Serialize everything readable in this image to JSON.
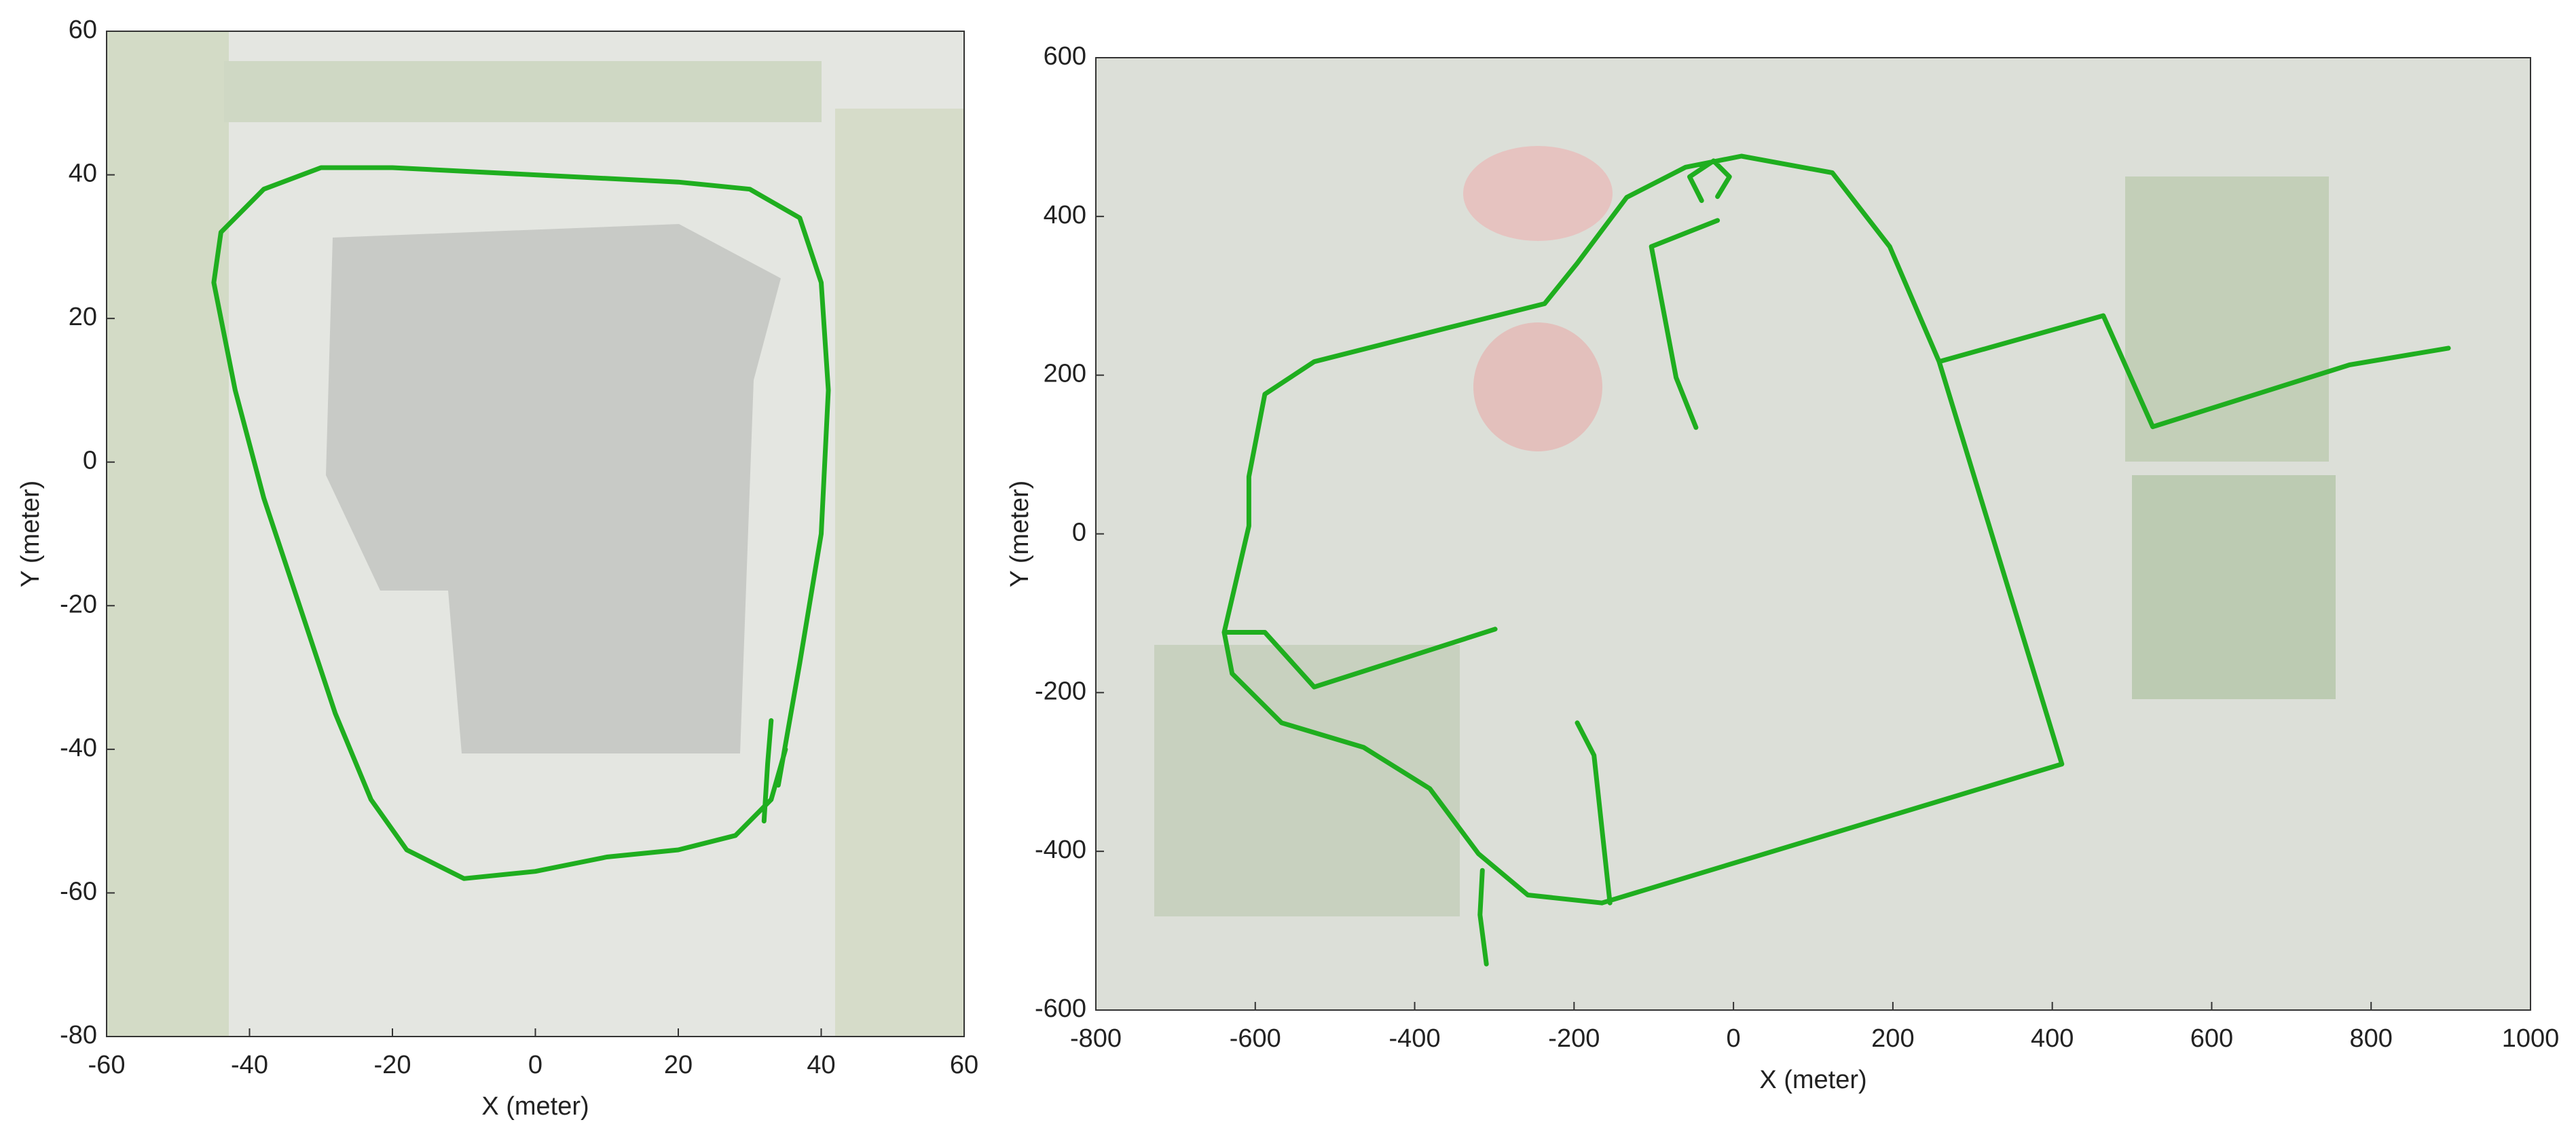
{
  "chart_data": [
    {
      "type": "line",
      "xlabel": "X (meter)",
      "ylabel": "Y (meter)",
      "xlim": [
        -60,
        60
      ],
      "ylim": [
        -80,
        60
      ],
      "xticks": [
        -60,
        -40,
        -20,
        0,
        20,
        40,
        60
      ],
      "yticks": [
        -80,
        -60,
        -40,
        -20,
        0,
        20,
        40,
        60
      ],
      "series": [
        {
          "color": "#1fae1f",
          "x": [
            32,
            32.5,
            33,
            null,
            34,
            37,
            40,
            41,
            40,
            37,
            30,
            20,
            0,
            -20,
            -30,
            -38,
            -44,
            -45,
            -42,
            -38,
            -33,
            -28,
            -23,
            -18,
            -10,
            0,
            10,
            20,
            28,
            33,
            35
          ],
          "values": [
            -50,
            -42,
            -36,
            null,
            -45,
            -28,
            -10,
            10,
            25,
            34,
            38,
            39,
            40,
            41,
            41,
            38,
            32,
            25,
            10,
            -5,
            -20,
            -35,
            -47,
            -54,
            -58,
            -57,
            -55,
            -54,
            -52,
            -47,
            -40
          ]
        }
      ]
    },
    {
      "type": "line",
      "xlabel": "X (meter)",
      "ylabel": "Y (meter)",
      "xlim": [
        -800,
        1000
      ],
      "ylim": [
        -600,
        600
      ],
      "xticks": [
        -800,
        -600,
        -400,
        -200,
        0,
        200,
        400,
        600,
        800,
        1000
      ],
      "yticks": [
        -600,
        -400,
        -200,
        0,
        200,
        400,
        600
      ],
      "series": [
        {
          "color": "#1fae1f",
          "x": [
            -165,
            412,
            258,
            196,
            124,
            10,
            -60,
            -134,
            -196,
            -237,
            -361,
            -526,
            -588,
            -608,
            -608,
            -639,
            -629,
            -567,
            -464,
            -381,
            -320,
            -258,
            -165,
            null,
            -315,
            -318,
            -310,
            null,
            258,
            464,
            526,
            773,
            897,
            null,
            -639,
            -588,
            -526,
            -299,
            null,
            -20,
            -103,
            -72,
            -47,
            null,
            -40,
            -55,
            -25,
            -5,
            -20,
            null,
            -196,
            -175,
            -155
          ],
          "values": [
            -465,
            -290,
            217,
            362,
            455,
            476,
            462,
            424,
            341,
            290,
            259,
            217,
            176,
            72,
            10,
            -124,
            -176,
            -238,
            -269,
            -321,
            -403,
            -455,
            -465,
            null,
            -424,
            -480,
            -542,
            null,
            217,
            275,
            135,
            213,
            234,
            null,
            -124,
            -124,
            -193,
            -120,
            null,
            395,
            362,
            197,
            134,
            null,
            420,
            450,
            470,
            450,
            425,
            null,
            -238,
            -279,
            -465
          ]
        }
      ]
    }
  ]
}
